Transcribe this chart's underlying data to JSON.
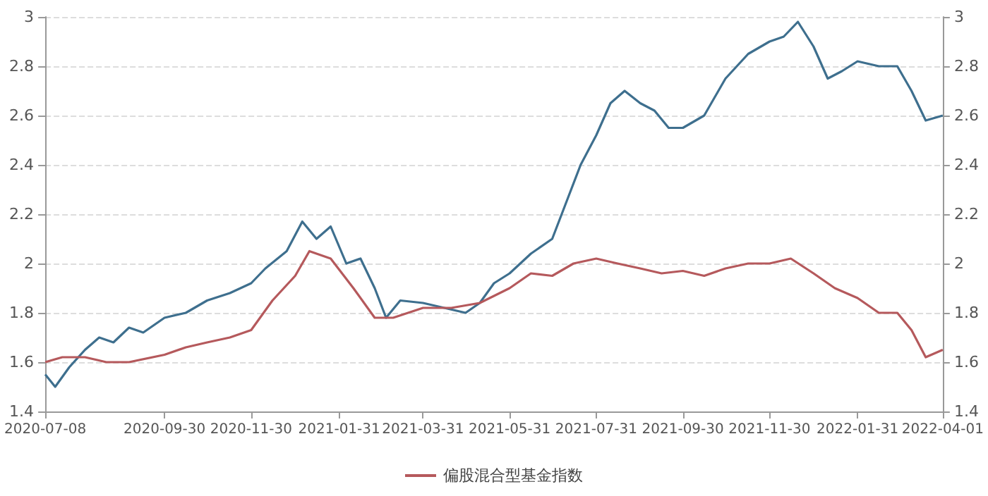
{
  "chart_data": {
    "type": "line",
    "x": [
      "2020-07-08",
      "2020-07-15",
      "2020-07-25",
      "2020-08-05",
      "2020-08-15",
      "2020-08-25",
      "2020-09-05",
      "2020-09-15",
      "2020-09-30",
      "2020-10-15",
      "2020-10-30",
      "2020-11-15",
      "2020-11-30",
      "2020-12-10",
      "2020-12-25",
      "2021-01-05",
      "2021-01-15",
      "2021-01-25",
      "2021-02-05",
      "2021-02-15",
      "2021-02-25",
      "2021-03-05",
      "2021-03-15",
      "2021-03-31",
      "2021-04-15",
      "2021-04-30",
      "2021-05-10",
      "2021-05-20",
      "2021-05-31",
      "2021-06-15",
      "2021-06-30",
      "2021-07-10",
      "2021-07-20",
      "2021-07-31",
      "2021-08-10",
      "2021-08-20",
      "2021-08-31",
      "2021-09-10",
      "2021-09-20",
      "2021-09-30",
      "2021-10-15",
      "2021-10-30",
      "2021-11-15",
      "2021-11-30",
      "2021-12-10",
      "2021-12-20",
      "2021-12-31",
      "2022-01-10",
      "2022-01-20",
      "2022-01-31",
      "2022-02-15",
      "2022-02-28",
      "2022-03-10",
      "2022-03-20",
      "2022-04-01"
    ],
    "series": [
      {
        "color": "#3e6f8e",
        "values": [
          1.55,
          1.5,
          1.58,
          1.65,
          1.7,
          1.68,
          1.74,
          1.72,
          1.78,
          1.8,
          1.85,
          1.88,
          1.92,
          1.98,
          2.05,
          2.17,
          2.1,
          2.15,
          2.0,
          2.02,
          1.9,
          1.78,
          1.85,
          1.84,
          1.82,
          1.8,
          1.84,
          1.92,
          1.96,
          2.04,
          2.1,
          2.25,
          2.4,
          2.52,
          2.65,
          2.7,
          2.65,
          2.62,
          2.55,
          2.55,
          2.6,
          2.75,
          2.85,
          2.9,
          2.92,
          2.98,
          2.88,
          2.75,
          2.78,
          2.82,
          2.8,
          2.8,
          2.7,
          2.58,
          2.6
        ]
      },
      {
        "name": "偏股混合型基金指数",
        "color": "#b5595c",
        "x": [
          "2020-07-08",
          "2020-07-20",
          "2020-08-05",
          "2020-08-20",
          "2020-09-05",
          "2020-09-30",
          "2020-10-15",
          "2020-10-30",
          "2020-11-15",
          "2020-11-30",
          "2020-12-15",
          "2020-12-31",
          "2021-01-10",
          "2021-01-25",
          "2021-02-10",
          "2021-02-25",
          "2021-03-10",
          "2021-03-31",
          "2021-04-20",
          "2021-05-10",
          "2021-05-31",
          "2021-06-15",
          "2021-06-30",
          "2021-07-15",
          "2021-07-31",
          "2021-08-15",
          "2021-08-31",
          "2021-09-15",
          "2021-09-30",
          "2021-10-15",
          "2021-10-30",
          "2021-11-15",
          "2021-11-30",
          "2021-12-15",
          "2021-12-31",
          "2022-01-15",
          "2022-01-31",
          "2022-02-15",
          "2022-02-28",
          "2022-03-10",
          "2022-03-20",
          "2022-04-01"
        ],
        "values": [
          1.6,
          1.62,
          1.62,
          1.6,
          1.6,
          1.63,
          1.66,
          1.68,
          1.7,
          1.73,
          1.85,
          1.95,
          2.05,
          2.02,
          1.9,
          1.78,
          1.78,
          1.82,
          1.82,
          1.84,
          1.9,
          1.96,
          1.95,
          2.0,
          2.02,
          2.0,
          1.98,
          1.96,
          1.97,
          1.95,
          1.98,
          2.0,
          2.0,
          2.02,
          1.96,
          1.9,
          1.86,
          1.8,
          1.8,
          1.73,
          1.62,
          1.65
        ]
      }
    ],
    "xlim": [
      "2020-07-08",
      "2022-04-01"
    ],
    "xticks": [
      "2020-07-08",
      "2020-09-30",
      "2020-11-30",
      "2021-01-31",
      "2021-03-31",
      "2021-05-31",
      "2021-07-31",
      "2021-09-30",
      "2021-11-30",
      "2022-01-31",
      "2022-04-01"
    ],
    "ylim": [
      1.4,
      3
    ],
    "yticks": [
      1.4,
      1.6,
      1.8,
      2,
      2.2,
      2.4,
      2.6,
      2.8,
      3
    ],
    "y2lim": [
      1.4,
      3
    ],
    "y2ticks": [
      1.4,
      1.6,
      1.8,
      2,
      2.2,
      2.4,
      2.6,
      2.8,
      3
    ],
    "grid": "y",
    "legend": "bottom",
    "marker": "none",
    "line_style": "solid"
  }
}
